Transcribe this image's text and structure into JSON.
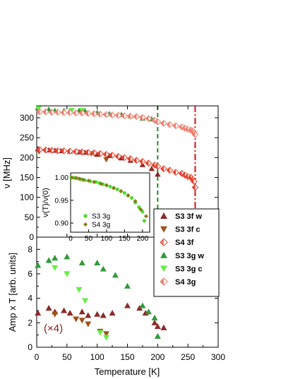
{
  "chart_data": {
    "type": "scatter",
    "colors": {
      "S3 3f w": "#8b2a2a",
      "S3 3f c": "#a0521a",
      "S4 3f": "#e8432f",
      "S3 3g w": "#2f9a3a",
      "S3 3g c": "#66ee44",
      "S4 3g": "#f08070",
      "inset_S3": "#44dd22",
      "inset_S4": "#8a7a18"
    },
    "top_panel": {
      "ylabel": "ν [MHz]",
      "xlim": [
        0,
        300
      ],
      "ylim": [
        0,
        330
      ],
      "yticks": [
        "0",
        "50",
        "100",
        "150",
        "200",
        "250",
        "300"
      ],
      "vlines": [
        {
          "x": 200,
          "color": "#2a8a2a",
          "style": "dashed"
        },
        {
          "x": 262,
          "color": "#e01020",
          "style": "dashdot"
        }
      ],
      "series": [
        {
          "name": "S3 3f w",
          "marker": "triangle-up",
          "x": [
            2,
            20,
            30,
            40,
            55,
            70,
            80,
            100,
            120,
            140,
            155,
            175,
            190,
            200
          ],
          "y": [
            222,
            219,
            218,
            217,
            216,
            214,
            213,
            208,
            205,
            199,
            193,
            182,
            172,
            158
          ]
        },
        {
          "name": "S3 3f c",
          "marker": "triangle-down",
          "x": [
            4,
            75,
            90,
            115
          ],
          "y": [
            215,
            212,
            210,
            195
          ]
        },
        {
          "name": "S4 3f",
          "marker": "diamond-half",
          "x": [
            5,
            15,
            25,
            35,
            45,
            55,
            65,
            75,
            85,
            95,
            105,
            115,
            125,
            135,
            145,
            155,
            165,
            175,
            185,
            195,
            200,
            210,
            220,
            230,
            240,
            245,
            250,
            255,
            258,
            260,
            262
          ],
          "y": [
            220,
            219,
            218,
            217,
            217,
            216,
            215,
            214,
            213,
            212,
            210,
            208,
            206,
            203,
            200,
            197,
            193,
            190,
            186,
            181,
            178,
            172,
            168,
            163,
            160,
            156,
            152,
            150,
            145,
            140,
            125
          ]
        },
        {
          "name": "S3 3g w",
          "marker": "triangle-up",
          "x": [
            2,
            20,
            30,
            45,
            55,
            70,
            80,
            100,
            120,
            140,
            155,
            175,
            190,
            200
          ],
          "y": [
            325,
            321,
            318,
            318,
            318,
            318,
            317,
            313,
            310,
            308,
            305,
            299,
            297,
            292
          ]
        },
        {
          "name": "S3 3g c",
          "marker": "triangle-down",
          "x": [
            3,
            58,
            75
          ],
          "y": [
            323,
            319,
            319
          ]
        },
        {
          "name": "S4 3g",
          "marker": "diamond-half",
          "x": [
            5,
            15,
            25,
            35,
            45,
            55,
            65,
            75,
            85,
            95,
            105,
            115,
            125,
            135,
            145,
            155,
            165,
            175,
            185,
            195,
            200,
            210,
            220,
            230,
            240,
            245,
            250,
            255,
            258,
            260,
            262
          ],
          "y": [
            315,
            315,
            314,
            314,
            313,
            313,
            312,
            312,
            311,
            310,
            309,
            308,
            307,
            306,
            305,
            304,
            303,
            301,
            298,
            294,
            290,
            286,
            283,
            280,
            277,
            274,
            271,
            269,
            267,
            263,
            258
          ]
        }
      ]
    },
    "inset": {
      "xlabel": "",
      "ylabel": "ν(T)/ν(0)",
      "xlim": [
        0,
        220
      ],
      "ylim": [
        0.88,
        1.01
      ],
      "xticks": [
        "0",
        "50",
        "100",
        "150",
        "200"
      ],
      "yticks": [
        "0.90",
        "0.95",
        "1.00"
      ],
      "series": [
        {
          "name": "S3 3g",
          "marker": "circle",
          "x": [
            2,
            10,
            20,
            30,
            40,
            55,
            70,
            80,
            90,
            100,
            110,
            120,
            130,
            140,
            150,
            160,
            170,
            180,
            190,
            200,
            205
          ],
          "y": [
            1.0,
            0.999,
            0.998,
            0.996,
            0.994,
            0.992,
            0.99,
            0.988,
            0.985,
            0.983,
            0.98,
            0.977,
            0.974,
            0.97,
            0.966,
            0.961,
            0.955,
            0.945,
            0.935,
            0.925,
            0.905
          ]
        },
        {
          "name": "S4 3g",
          "marker": "diamond",
          "x": [
            4,
            15,
            25,
            35,
            50,
            65,
            85,
            100,
            120,
            140,
            160,
            180,
            195,
            210
          ],
          "y": [
            1.0,
            0.999,
            0.997,
            0.995,
            0.993,
            0.99,
            0.986,
            0.983,
            0.977,
            0.97,
            0.96,
            0.948,
            0.93,
            0.915
          ]
        }
      ]
    },
    "bottom_panel": {
      "xlabel": "Temperature [K]",
      "ylabel": "Amp x T [arb. units]",
      "xlim": [
        0,
        300
      ],
      "ylim": [
        0,
        9
      ],
      "xticks": [
        "0",
        "50",
        "100",
        "150",
        "200",
        "250",
        "300"
      ],
      "yticks": [
        "0",
        "2",
        "4",
        "6",
        "8"
      ],
      "annotation": "(×4)",
      "series": [
        {
          "name": "S3 3f w",
          "marker": "triangle-up",
          "x": [
            2,
            20,
            30,
            45,
            55,
            75,
            85,
            100,
            110,
            125,
            150,
            170,
            180,
            195,
            200,
            210
          ],
          "y": [
            2.8,
            3.2,
            2.9,
            3.0,
            2.8,
            2.9,
            2.6,
            2.7,
            2.6,
            2.8,
            3.4,
            3.2,
            2.8,
            2.0,
            1.7,
            1.6
          ]
        },
        {
          "name": "S3 3f c",
          "marker": "triangle-down",
          "x": [
            30,
            65,
            75,
            85,
            105,
            115
          ],
          "y": [
            2.7,
            2.3,
            2.2,
            1.9,
            1.3,
            1.1
          ]
        },
        {
          "name": "S3 3g w",
          "marker": "triangle-up",
          "x": [
            2,
            20,
            30,
            50,
            75,
            100,
            110,
            130,
            150,
            175,
            185,
            195,
            200
          ],
          "y": [
            6.7,
            7.1,
            7.3,
            7.4,
            6.9,
            6.9,
            6.4,
            5.9,
            5.0,
            3.4,
            2.9,
            2.4,
            0.9
          ]
        },
        {
          "name": "S3 3g c",
          "marker": "triangle-down",
          "x": [
            30,
            50,
            70,
            80,
            105,
            115
          ],
          "y": [
            6.5,
            6.0,
            4.7,
            3.8,
            1.2,
            0.8
          ]
        }
      ]
    },
    "legend": {
      "placement": "right",
      "entries": [
        "S3 3f w",
        "S3 3f c",
        "S4 3f",
        "S3 3g w",
        "S3 3g c",
        "S4 3g"
      ]
    },
    "inset_legend": {
      "placement": "bottom-left",
      "entries": [
        "S3 3g",
        "S4 3g"
      ]
    }
  }
}
